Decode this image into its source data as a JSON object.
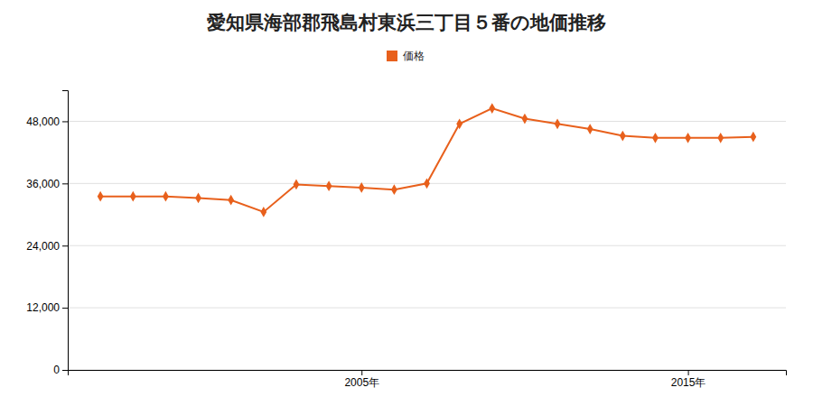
{
  "chart_data": {
    "type": "line",
    "title": "愛知県海部郡飛島村東浜三丁目５番の地価推移",
    "x": [
      1997,
      1998,
      1999,
      2000,
      2001,
      2002,
      2003,
      2004,
      2005,
      2006,
      2007,
      2008,
      2009,
      2010,
      2011,
      2012,
      2013,
      2014,
      2015,
      2016,
      2017
    ],
    "series": [
      {
        "name": "価格",
        "color": "#e8601c",
        "marker": "diamond",
        "values": [
          33500,
          33500,
          33500,
          33200,
          32800,
          30500,
          35800,
          35500,
          35200,
          34800,
          36000,
          47500,
          50500,
          48500,
          47500,
          46500,
          45200,
          44800,
          44800,
          44800,
          45000
        ]
      }
    ],
    "xlim": [
      1996,
      2018
    ],
    "xticks": [
      {
        "value": 2005,
        "label": "2005年"
      },
      {
        "value": 2015,
        "label": "2015年"
      }
    ],
    "ylim": [
      0,
      54000
    ],
    "yticks": [
      0,
      {
        "value": 12000,
        "label": "12,000"
      },
      {
        "value": 24000,
        "label": "24,000"
      },
      {
        "value": 36000,
        "label": "36,000"
      },
      {
        "value": 48000,
        "label": "48,000"
      }
    ],
    "grid": true,
    "legend": "top"
  }
}
